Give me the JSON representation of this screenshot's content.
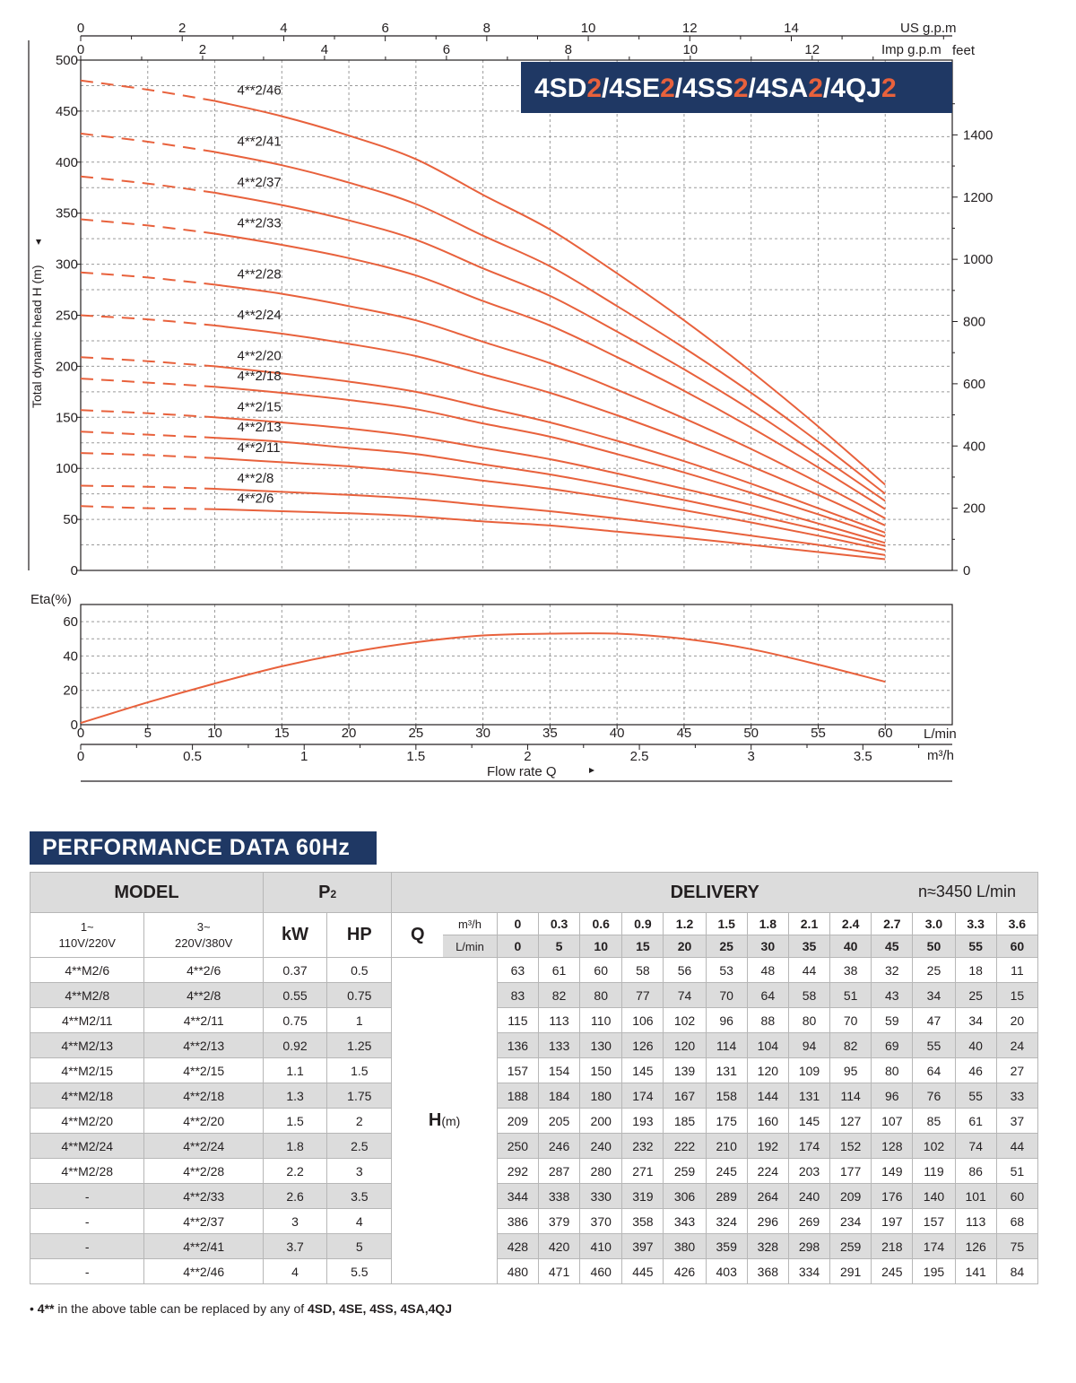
{
  "chart_data": [
    {
      "type": "line",
      "title": "4SD2/4SE2/4SS2/4SA2/4QJ2",
      "title_parts": [
        "4SD",
        "2",
        "/4SE",
        "2",
        "/4SS",
        "2",
        "/4SA",
        "2",
        "/4QJ",
        "2"
      ],
      "ylabel": "Total dynamic head H (m)",
      "ylim": [
        0,
        500
      ],
      "yticks": [
        "0",
        "50",
        "100",
        "150",
        "200",
        "250",
        "300",
        "350",
        "400",
        "450",
        "500"
      ],
      "y2label": "feet",
      "y2ticks": [
        "0",
        "200",
        "400",
        "600",
        "800",
        "1000",
        "1200",
        "1400"
      ],
      "x_top_label": "US g.p.m",
      "x_top_ticks": [
        "0",
        "2",
        "4",
        "6",
        "8",
        "10",
        "12",
        "14"
      ],
      "x_top2_label": "Imp g.p.m",
      "x_top2_ticks": [
        "0",
        "2",
        "4",
        "6",
        "8",
        "10",
        "12"
      ],
      "x": [
        0,
        5,
        10,
        15,
        20,
        25,
        30,
        35,
        40,
        45,
        50,
        55,
        60
      ],
      "xlim": [
        0,
        65
      ],
      "grid": true,
      "series": [
        {
          "name": "4**2/6",
          "values": [
            63,
            61,
            60,
            58,
            56,
            53,
            48,
            44,
            38,
            32,
            25,
            18,
            11
          ]
        },
        {
          "name": "4**2/8",
          "values": [
            83,
            82,
            80,
            77,
            74,
            70,
            64,
            58,
            51,
            43,
            34,
            25,
            15
          ]
        },
        {
          "name": "4**2/11",
          "values": [
            115,
            113,
            110,
            106,
            102,
            96,
            88,
            80,
            70,
            59,
            47,
            34,
            20
          ]
        },
        {
          "name": "4**2/13",
          "values": [
            136,
            133,
            130,
            126,
            120,
            114,
            104,
            94,
            82,
            69,
            55,
            40,
            24
          ]
        },
        {
          "name": "4**2/15",
          "values": [
            157,
            154,
            150,
            145,
            139,
            131,
            120,
            109,
            95,
            80,
            64,
            46,
            27
          ]
        },
        {
          "name": "4**2/18",
          "values": [
            188,
            184,
            180,
            174,
            167,
            158,
            144,
            131,
            114,
            96,
            76,
            55,
            33
          ]
        },
        {
          "name": "4**2/20",
          "values": [
            209,
            205,
            200,
            193,
            185,
            175,
            160,
            145,
            127,
            107,
            85,
            61,
            37
          ]
        },
        {
          "name": "4**2/24",
          "values": [
            250,
            246,
            240,
            232,
            222,
            210,
            192,
            174,
            152,
            128,
            102,
            74,
            44
          ]
        },
        {
          "name": "4**2/28",
          "values": [
            292,
            287,
            280,
            271,
            259,
            245,
            224,
            203,
            177,
            149,
            119,
            86,
            51
          ]
        },
        {
          "name": "4**2/33",
          "values": [
            344,
            338,
            330,
            319,
            306,
            289,
            264,
            240,
            209,
            176,
            140,
            101,
            60
          ]
        },
        {
          "name": "4**2/37",
          "values": [
            386,
            379,
            370,
            358,
            343,
            324,
            296,
            269,
            234,
            197,
            157,
            113,
            68
          ]
        },
        {
          "name": "4**2/41",
          "values": [
            428,
            420,
            410,
            397,
            380,
            359,
            328,
            298,
            259,
            218,
            174,
            126,
            75
          ]
        },
        {
          "name": "4**2/46",
          "values": [
            480,
            471,
            460,
            445,
            426,
            403,
            368,
            334,
            291,
            245,
            195,
            141,
            84
          ]
        }
      ],
      "dashed_range": [
        0,
        10
      ],
      "colors": {
        "curve": "#e8613c",
        "grid": "#9a9a9a",
        "title_bg": "#1f3864",
        "title_text": "#ffffff",
        "title_accent": "#e8613c"
      }
    },
    {
      "type": "line",
      "ylabel": "Eta(%)",
      "ylim": [
        0,
        70
      ],
      "yticks": [
        "0",
        "20",
        "40",
        "60"
      ],
      "xlabel": "Flow rate   Q",
      "x_unit": "L/min",
      "xticks": [
        "0",
        "5",
        "10",
        "15",
        "20",
        "25",
        "30",
        "35",
        "40",
        "45",
        "50",
        "55",
        "60"
      ],
      "x2_unit": "m³/h",
      "x2ticks": [
        "0",
        "0.5",
        "1",
        "1.5",
        "2",
        "2.5",
        "3",
        "3.5"
      ],
      "x": [
        0,
        5,
        10,
        15,
        20,
        25,
        30,
        35,
        40,
        45,
        50,
        55,
        60
      ],
      "series": [
        {
          "values": [
            1,
            13,
            24,
            34,
            42,
            48,
            52,
            53,
            53,
            50,
            44,
            35,
            25
          ]
        }
      ],
      "xlim": [
        0,
        65
      ],
      "grid": true
    }
  ],
  "performance": {
    "title": "PERFORMANCE DATA 60Hz",
    "headers": {
      "model": "MODEL",
      "p2_main": "P",
      "p2_sub": "2",
      "delivery": "DELIVERY",
      "speed": "n≈3450 L/min",
      "col_1phase": "1~\n110V/220V",
      "col_3phase": "3~\n220V/380V",
      "kw": "kW",
      "hp": "HP",
      "q": "Q",
      "m3h": "m³/h",
      "lmin": "L/min",
      "h_main": "H",
      "h_unit": "(m)"
    },
    "q_m3h": [
      "0",
      "0.3",
      "0.6",
      "0.9",
      "1.2",
      "1.5",
      "1.8",
      "2.1",
      "2.4",
      "2.7",
      "3.0",
      "3.3",
      "3.6"
    ],
    "q_lmin": [
      "0",
      "5",
      "10",
      "15",
      "20",
      "25",
      "30",
      "35",
      "40",
      "45",
      "50",
      "55",
      "60"
    ],
    "rows": [
      {
        "m1": "4**M2/6",
        "m3": "4**2/6",
        "kw": "0.37",
        "hp": "0.5",
        "h": [
          "63",
          "61",
          "60",
          "58",
          "56",
          "53",
          "48",
          "44",
          "38",
          "32",
          "25",
          "18",
          "11"
        ]
      },
      {
        "m1": "4**M2/8",
        "m3": "4**2/8",
        "kw": "0.55",
        "hp": "0.75",
        "h": [
          "83",
          "82",
          "80",
          "77",
          "74",
          "70",
          "64",
          "58",
          "51",
          "43",
          "34",
          "25",
          "15"
        ]
      },
      {
        "m1": "4**M2/11",
        "m3": "4**2/11",
        "kw": "0.75",
        "hp": "1",
        "h": [
          "115",
          "113",
          "110",
          "106",
          "102",
          "96",
          "88",
          "80",
          "70",
          "59",
          "47",
          "34",
          "20"
        ]
      },
      {
        "m1": "4**M2/13",
        "m3": "4**2/13",
        "kw": "0.92",
        "hp": "1.25",
        "h": [
          "136",
          "133",
          "130",
          "126",
          "120",
          "114",
          "104",
          "94",
          "82",
          "69",
          "55",
          "40",
          "24"
        ]
      },
      {
        "m1": "4**M2/15",
        "m3": "4**2/15",
        "kw": "1.1",
        "hp": "1.5",
        "h": [
          "157",
          "154",
          "150",
          "145",
          "139",
          "131",
          "120",
          "109",
          "95",
          "80",
          "64",
          "46",
          "27"
        ]
      },
      {
        "m1": "4**M2/18",
        "m3": "4**2/18",
        "kw": "1.3",
        "hp": "1.75",
        "h": [
          "188",
          "184",
          "180",
          "174",
          "167",
          "158",
          "144",
          "131",
          "114",
          "96",
          "76",
          "55",
          "33"
        ]
      },
      {
        "m1": "4**M2/20",
        "m3": "4**2/20",
        "kw": "1.5",
        "hp": "2",
        "h": [
          "209",
          "205",
          "200",
          "193",
          "185",
          "175",
          "160",
          "145",
          "127",
          "107",
          "85",
          "61",
          "37"
        ]
      },
      {
        "m1": "4**M2/24",
        "m3": "4**2/24",
        "kw": "1.8",
        "hp": "2.5",
        "h": [
          "250",
          "246",
          "240",
          "232",
          "222",
          "210",
          "192",
          "174",
          "152",
          "128",
          "102",
          "74",
          "44"
        ]
      },
      {
        "m1": "4**M2/28",
        "m3": "4**2/28",
        "kw": "2.2",
        "hp": "3",
        "h": [
          "292",
          "287",
          "280",
          "271",
          "259",
          "245",
          "224",
          "203",
          "177",
          "149",
          "119",
          "86",
          "51"
        ]
      },
      {
        "m1": "-",
        "m3": "4**2/33",
        "kw": "2.6",
        "hp": "3.5",
        "h": [
          "344",
          "338",
          "330",
          "319",
          "306",
          "289",
          "264",
          "240",
          "209",
          "176",
          "140",
          "101",
          "60"
        ]
      },
      {
        "m1": "-",
        "m3": "4**2/37",
        "kw": "3",
        "hp": "4",
        "h": [
          "386",
          "379",
          "370",
          "358",
          "343",
          "324",
          "296",
          "269",
          "234",
          "197",
          "157",
          "113",
          "68"
        ]
      },
      {
        "m1": "-",
        "m3": "4**2/41",
        "kw": "3.7",
        "hp": "5",
        "h": [
          "428",
          "420",
          "410",
          "397",
          "380",
          "359",
          "328",
          "298",
          "259",
          "218",
          "174",
          "126",
          "75"
        ]
      },
      {
        "m1": "-",
        "m3": "4**2/46",
        "kw": "4",
        "hp": "5.5",
        "h": [
          "480",
          "471",
          "460",
          "445",
          "426",
          "403",
          "368",
          "334",
          "291",
          "245",
          "195",
          "141",
          "84"
        ]
      }
    ],
    "footnote": {
      "bullet": "•",
      "bold1": "4**",
      "text": " in the above table can be replaced by any of ",
      "bold2": "4SD, 4SE, 4SS, 4SA,4QJ"
    }
  }
}
